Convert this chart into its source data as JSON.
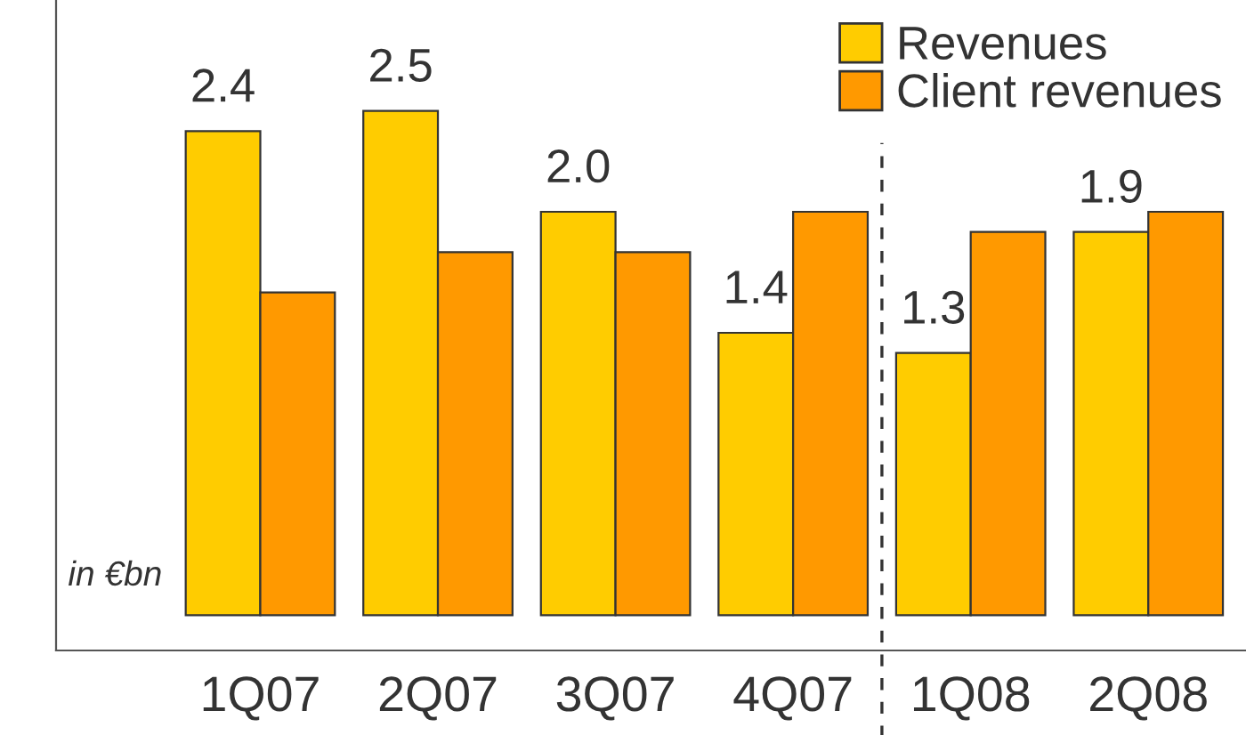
{
  "chart_data": {
    "type": "bar",
    "categories": [
      "1Q07",
      "2Q07",
      "3Q07",
      "4Q07",
      "1Q08",
      "2Q08"
    ],
    "series": [
      {
        "name": "Revenues",
        "color": "#ffcc00",
        "values": [
          2.4,
          2.5,
          2.0,
          1.4,
          1.3,
          1.9
        ],
        "value_labels": [
          "2.4",
          "2.5",
          "2.0",
          "1.4",
          "1.3",
          "1.9"
        ]
      },
      {
        "name": "Client revenues",
        "color": "#ff9900",
        "values": [
          1.6,
          1.8,
          1.8,
          2.0,
          1.9,
          2.0
        ]
      }
    ],
    "annotations": [
      "in €bn"
    ],
    "legend": "top right",
    "grid": false,
    "tick_labels": "x"
  }
}
